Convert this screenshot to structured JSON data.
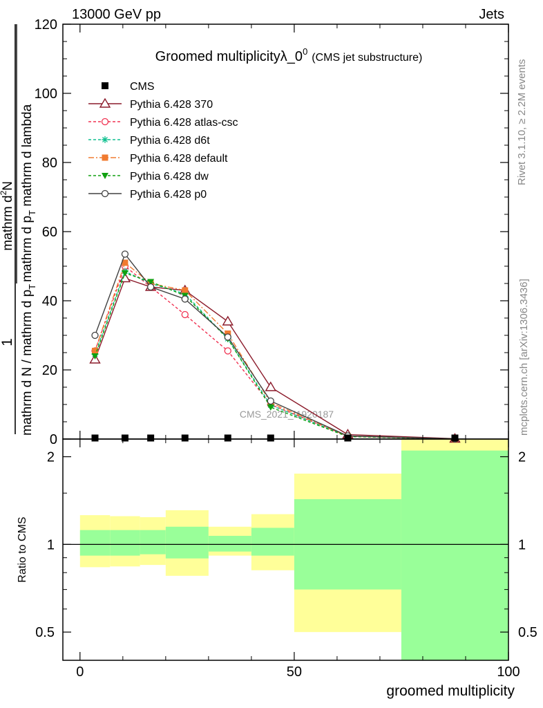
{
  "header": {
    "left": "13000 GeV pp",
    "right": "Jets"
  },
  "side_labels": {
    "rivet": "Rivet 3.1.10, ≥ 2.2M events",
    "mcplots": "mcplots.cern.ch [arXiv:1306.3436]"
  },
  "watermark": "CMS_2021_I1920187",
  "chart_data": [
    {
      "type": "line",
      "title_main": "Groomed multiplicityλ_0",
      "title_sup": "0",
      "title_sub": "(CMS jet substructure)",
      "ylabel_num": "1",
      "ylabel_den": "mathrm d N / mathrm d p",
      "ylabel_den_sub": "T",
      "ylabel_top": "mathrm d",
      "ylabel_top_sup": "2",
      "ylabel_top_rest": "N",
      "ylabel_bottom": "mathrm d p",
      "ylabel_bottom_sub": "T",
      "ylabel_bottom_rest": " mathrm d lambda",
      "ylim": [
        0,
        120
      ],
      "yticks": [
        0,
        20,
        40,
        60,
        80,
        100,
        120
      ],
      "xlim": [
        -4,
        100
      ],
      "legend_position": "top-left",
      "series": [
        {
          "name": "CMS",
          "color": "#000000",
          "style": "data",
          "x": [
            3.5,
            10.5,
            16.5,
            24.5,
            34.5,
            44.5,
            62.5,
            87.5
          ],
          "y": [
            0.3,
            0.3,
            0.3,
            0.3,
            0.3,
            0.3,
            0.3,
            0.3
          ]
        },
        {
          "name": "Pythia 6.428 370",
          "color": "#8b1a2a",
          "style": "solid",
          "marker": "triangle-open",
          "x": [
            3.5,
            10.5,
            16.5,
            24.5,
            34.5,
            44.5,
            62.5,
            87.5
          ],
          "y": [
            23,
            46.5,
            44,
            43,
            34,
            15,
            1.3,
            0.1
          ]
        },
        {
          "name": "Pythia 6.428 atlas-csc",
          "color": "#f03050",
          "style": "dashed",
          "marker": "circle-open",
          "x": [
            3.5,
            10.5,
            16.5,
            24.5,
            34.5,
            44.5,
            62.5,
            87.5
          ],
          "y": [
            25.5,
            50,
            44,
            36,
            25.5,
            10,
            0.8,
            0.05
          ]
        },
        {
          "name": "Pythia 6.428 d6t",
          "color": "#10c090",
          "style": "dashed",
          "marker": "star",
          "x": [
            3.5,
            10.5,
            16.5,
            24.5,
            34.5,
            44.5,
            62.5,
            87.5
          ],
          "y": [
            24.5,
            48.5,
            45,
            42,
            29,
            9.8,
            0.8,
            0.05
          ]
        },
        {
          "name": "Pythia 6.428 default",
          "color": "#f07b30",
          "style": "dashdot",
          "marker": "square",
          "x": [
            3.5,
            10.5,
            16.5,
            24.5,
            34.5,
            44.5,
            62.5,
            87.5
          ],
          "y": [
            25.5,
            51,
            45,
            43,
            30.5,
            10.5,
            0.8,
            0.05
          ]
        },
        {
          "name": "Pythia 6.428 dw",
          "color": "#10a010",
          "style": "dashed",
          "marker": "triangle-down",
          "x": [
            3.5,
            10.5,
            16.5,
            24.5,
            34.5,
            44.5,
            62.5,
            87.5
          ],
          "y": [
            24,
            48,
            45.5,
            41.5,
            29,
            9.2,
            0.7,
            0.05
          ]
        },
        {
          "name": "Pythia 6.428 p0",
          "color": "#404040",
          "style": "solid",
          "marker": "circle-open",
          "x": [
            3.5,
            10.5,
            16.5,
            24.5,
            34.5,
            44.5,
            62.5,
            87.5
          ],
          "y": [
            30,
            53.5,
            44,
            40.5,
            29.5,
            11,
            0.9,
            0.05
          ]
        }
      ]
    },
    {
      "type": "area",
      "xlabel": "groomed multiplicity",
      "ylabel": "Ratio to CMS",
      "yscale": "log",
      "ylim": [
        0.4,
        2.3
      ],
      "yticks": [
        0.5,
        1,
        2
      ],
      "xlim": [
        -4,
        100
      ],
      "xticks": [
        0,
        50,
        100
      ],
      "reference_line": 1,
      "bands": {
        "bins": [
          [
            0,
            7
          ],
          [
            7,
            14
          ],
          [
            14,
            20
          ],
          [
            20,
            30
          ],
          [
            30,
            40
          ],
          [
            40,
            50
          ],
          [
            50,
            75
          ],
          [
            75,
            100
          ]
        ],
        "inner": [
          [
            0.915,
            1.12
          ],
          [
            0.915,
            1.12
          ],
          [
            0.925,
            1.12
          ],
          [
            0.895,
            1.15
          ],
          [
            0.945,
            1.07
          ],
          [
            0.915,
            1.14
          ],
          [
            0.7,
            1.43
          ],
          [
            0.4,
            2.1
          ]
        ],
        "outer": [
          [
            0.835,
            1.26
          ],
          [
            0.84,
            1.25
          ],
          [
            0.85,
            1.24
          ],
          [
            0.78,
            1.31
          ],
          [
            0.915,
            1.15
          ],
          [
            0.815,
            1.27
          ],
          [
            0.5,
            1.75
          ],
          [
            0.4,
            2.3
          ]
        ],
        "inner_color": "#99ff99",
        "outer_color": "#ffff99"
      }
    }
  ]
}
